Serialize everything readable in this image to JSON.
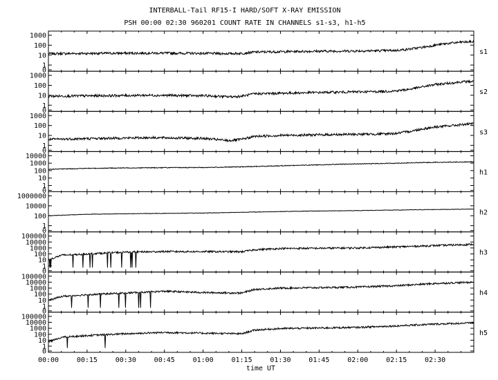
{
  "header": {
    "title": "INTERBALL-Tail RF15-I HARD/SOFT X-RAY EMISSION",
    "subtitle": "PSH 00:00 02:30 960201  COUNT RATE IN CHANNELS s1-s3, h1-h5"
  },
  "chart_data": {
    "type": "line",
    "title": "INTERBALL-Tail RF15-I HARD/SOFT X-RAY EMISSION",
    "subtitle": "PSH 00:00 02:30 960201  COUNT RATE IN CHANNELS s1-s3, h1-h5",
    "xlabel": "time UT",
    "x_tick_labels": [
      "00:00",
      "00:15",
      "00:30",
      "00:45",
      "01:00",
      "01:15",
      "01:30",
      "01:45",
      "02:00",
      "02:15",
      "02:30"
    ],
    "x_tick_minutes": [
      0,
      15,
      30,
      45,
      60,
      75,
      90,
      105,
      120,
      135,
      150
    ],
    "xlim_minutes": [
      0,
      165
    ],
    "y_scale": "log",
    "grid": false,
    "panels": [
      {
        "name": "s1",
        "ytick_labels": [
          "1000",
          "100",
          "10",
          "1",
          "0"
        ],
        "ytick_values": [
          1000,
          100,
          10,
          1,
          0
        ],
        "ylog_range": [
          0,
          3
        ],
        "t": [
          0,
          20,
          40,
          60,
          70,
          75,
          80,
          90,
          100,
          110,
          120,
          130,
          135,
          140,
          145,
          150,
          155,
          160,
          165
        ],
        "values": [
          14,
          15,
          16,
          15,
          14,
          15,
          20,
          22,
          24,
          25,
          26,
          28,
          30,
          40,
          60,
          100,
          150,
          200,
          220
        ]
      },
      {
        "name": "s2",
        "ytick_labels": [
          "1000",
          "100",
          "10",
          "1",
          "0"
        ],
        "ytick_values": [
          1000,
          100,
          10,
          1,
          0
        ],
        "ylog_range": [
          0,
          3
        ],
        "t": [
          0,
          20,
          40,
          60,
          70,
          75,
          80,
          90,
          100,
          110,
          120,
          130,
          135,
          140,
          145,
          150,
          155,
          160,
          165
        ],
        "values": [
          8,
          9,
          10,
          9,
          7,
          8,
          14,
          16,
          18,
          20,
          22,
          24,
          28,
          40,
          70,
          120,
          160,
          220,
          250
        ]
      },
      {
        "name": "s3",
        "ytick_labels": [
          "1000",
          "100",
          "10",
          "1",
          "0"
        ],
        "ytick_values": [
          1000,
          100,
          10,
          1,
          0
        ],
        "ylog_range": [
          0,
          3
        ],
        "t": [
          0,
          20,
          40,
          60,
          70,
          75,
          80,
          90,
          100,
          110,
          120,
          130,
          135,
          140,
          145,
          150,
          155,
          160,
          165
        ],
        "values": [
          4,
          5,
          6,
          5,
          3,
          4,
          8,
          10,
          11,
          12,
          13,
          14,
          16,
          25,
          45,
          70,
          90,
          120,
          150
        ]
      },
      {
        "name": "h1",
        "ytick_labels": [
          "10000",
          "1000",
          "100",
          "10",
          "1",
          "0"
        ],
        "ytick_values": [
          10000,
          1000,
          100,
          10,
          1,
          0
        ],
        "ylog_range": [
          0,
          4
        ],
        "t": [
          0,
          15,
          30,
          45,
          60,
          75,
          90,
          105,
          120,
          135,
          150,
          165
        ],
        "values": [
          150,
          200,
          230,
          250,
          260,
          320,
          450,
          600,
          800,
          1000,
          1300,
          1500
        ]
      },
      {
        "name": "h2",
        "ytick_labels": [
          "1000000",
          "10000",
          "100",
          "1",
          "0"
        ],
        "ytick_values": [
          1000000,
          10000,
          100,
          1,
          0
        ],
        "ylog_range": [
          0,
          6
        ],
        "t": [
          0,
          15,
          30,
          45,
          60,
          75,
          90,
          105,
          120,
          135,
          150,
          165
        ],
        "values": [
          100,
          200,
          250,
          300,
          350,
          500,
          700,
          900,
          1100,
          1400,
          1800,
          2200
        ]
      },
      {
        "name": "h3",
        "ytick_labels": [
          "100000",
          "10000",
          "1000",
          "100",
          "10",
          "1",
          "0"
        ],
        "ytick_values": [
          100000,
          10000,
          1000,
          100,
          10,
          1,
          0
        ],
        "ylog_range": [
          0,
          5
        ],
        "t": [
          0,
          5,
          15,
          30,
          45,
          60,
          75,
          80,
          90,
          105,
          120,
          135,
          150,
          165
        ],
        "values": [
          10,
          60,
          100,
          200,
          250,
          240,
          230,
          500,
          800,
          900,
          1000,
          1500,
          2500,
          4000
        ]
      },
      {
        "name": "h4",
        "ytick_labels": [
          "100000",
          "10000",
          "1000",
          "100",
          "10",
          "1",
          "0"
        ],
        "ytick_values": [
          100000,
          10000,
          1000,
          100,
          10,
          1,
          0
        ],
        "ylog_range": [
          0,
          5
        ],
        "t": [
          0,
          5,
          15,
          30,
          45,
          60,
          75,
          80,
          90,
          105,
          120,
          135,
          150,
          165
        ],
        "values": [
          8,
          40,
          80,
          150,
          300,
          180,
          150,
          600,
          1000,
          1200,
          1500,
          2500,
          6000,
          10000
        ]
      },
      {
        "name": "h5",
        "ytick_labels": [
          "100000",
          "10000",
          "1000",
          "100",
          "10",
          "1",
          "0"
        ],
        "ytick_values": [
          100000,
          10000,
          1000,
          100,
          10,
          1,
          0
        ],
        "ylog_range": [
          0,
          5
        ],
        "t": [
          0,
          5,
          15,
          30,
          45,
          60,
          75,
          80,
          90,
          105,
          120,
          135,
          150,
          165
        ],
        "values": [
          5,
          30,
          60,
          120,
          200,
          150,
          120,
          500,
          900,
          1100,
          1400,
          2500,
          5000,
          8000
        ]
      }
    ]
  }
}
